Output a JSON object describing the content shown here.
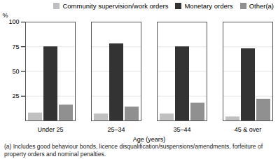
{
  "chart_data": {
    "type": "bar",
    "categories": [
      "Under 25",
      "25–34",
      "35–44",
      "45 & over"
    ],
    "series": [
      {
        "name": "Community supervision/work orders",
        "color": "#c0c0c0",
        "values": [
          8,
          7,
          7,
          4
        ]
      },
      {
        "name": "Monetary orders",
        "color": "#333333",
        "values": [
          75,
          78,
          75,
          73
        ]
      },
      {
        "name": "Other(a)",
        "color": "#909090",
        "values": [
          16,
          14,
          18,
          22
        ]
      }
    ],
    "xlabel": "Age (years)",
    "ylabel": "%",
    "ylim": [
      0,
      100
    ],
    "yticks": [
      25,
      50,
      75,
      100
    ],
    "grid": true,
    "legend": "top-right",
    "caption": "(a) Includes good behaviour bonds, licence disqualification/suspensions/amendments, forfeiture of\nproperty orders and nominal penalties."
  }
}
